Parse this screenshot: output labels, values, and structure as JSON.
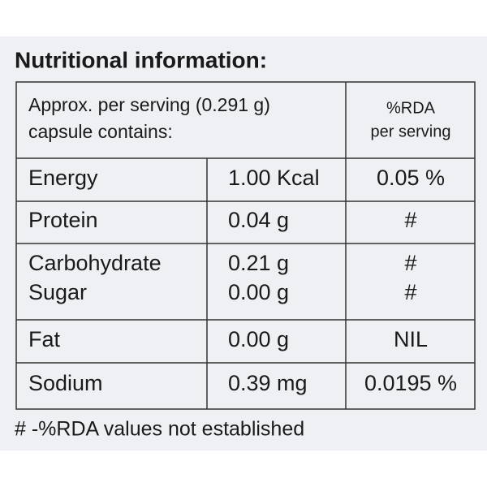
{
  "title": "Nutritional information:",
  "header": {
    "left": [
      "Approx. per serving (0.291 g)",
      "capsule contains:"
    ],
    "right": [
      "%RDA",
      "per serving"
    ]
  },
  "rows": [
    {
      "name": [
        "Energy"
      ],
      "amount": [
        "1.00 Kcal"
      ],
      "rda": [
        "0.05 %"
      ]
    },
    {
      "name": [
        "Protein"
      ],
      "amount": [
        "0.04 g"
      ],
      "rda": [
        "#"
      ]
    },
    {
      "name": [
        "Carbohydrate",
        "Sugar"
      ],
      "amount": [
        "0.21 g",
        "0.00 g"
      ],
      "rda": [
        "#",
        "#"
      ]
    },
    {
      "name": [
        "Fat"
      ],
      "amount": [
        "0.00 g"
      ],
      "rda": [
        "NIL"
      ]
    },
    {
      "name": [
        "Sodium"
      ],
      "amount": [
        "0.39 mg"
      ],
      "rda": [
        "0.0195 %"
      ]
    }
  ],
  "footnote": "# -%RDA values not established"
}
